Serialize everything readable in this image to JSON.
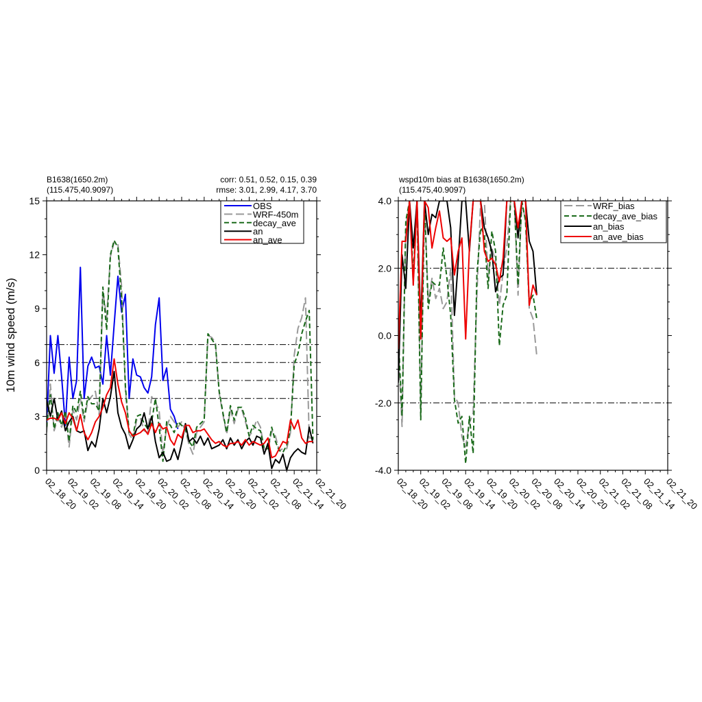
{
  "chart_data": [
    {
      "type": "line",
      "title_left": [
        "B1638(1650.2m)",
        "(115.475,40.9097)"
      ],
      "title_right": [
        "corr:  0.51, 0.52, 0.15, 0.39",
        "rmse: 3.01, 2.99, 4.17, 3.70"
      ],
      "xlabel": "",
      "ylabel": "10m wind speed (m/s)",
      "ylim": [
        0,
        15
      ],
      "yticks": [
        "0",
        "3",
        "6",
        "9",
        "12",
        "15"
      ],
      "xlim": [
        0,
        72
      ],
      "xticks": [
        "02_18_20",
        "02_19_02",
        "02_19_08",
        "02_19_14",
        "02_19_20",
        "02_20_02",
        "02_20_08",
        "02_20_14",
        "02_20_20",
        "02_21_02",
        "02_21_08",
        "02_21_14",
        "02_21_20"
      ],
      "x_step_hours": 1,
      "ref_lines": [
        4,
        5,
        6,
        7
      ],
      "legend_position": "top-right",
      "series": [
        {
          "name": "OBS",
          "color": "#0000ee",
          "dash": "solid",
          "values": [
            2.5,
            7.5,
            5.4,
            7.5,
            5.2,
            2.5,
            6.3,
            4.0,
            5.0,
            11.3,
            4.0,
            5.8,
            6.3,
            5.7,
            5.8,
            4.8,
            7.5,
            5.3,
            8.1,
            10.8,
            8.8,
            9.8,
            4.0,
            6.2,
            5.3,
            5.2,
            4.6,
            4.3,
            5.2,
            8.1,
            9.6,
            5.0,
            5.7,
            3.4,
            3.0,
            2.3
          ]
        },
        {
          "name": "WRF-450m",
          "color": "#999999",
          "dash": "long",
          "values": [
            2.1,
            4.8,
            2.2,
            2.9,
            2.4,
            3.1,
            1.3,
            3.4,
            2.8,
            4.0,
            2.7,
            3.9,
            4.1,
            4.4,
            3.1,
            10.0,
            8.5,
            11.9,
            12.7,
            12.6,
            10.2,
            4.5,
            2.0,
            1.7,
            2.8,
            2.9,
            2.2,
            2.1,
            4.1,
            3.8,
            3.3,
            0.9,
            2.4,
            3.0,
            2.7,
            2.4,
            2.7,
            2.2,
            1.4,
            0.9,
            2.1,
            2.4,
            2.7,
            7.5,
            7.4,
            7.1,
            4.3,
            3.1,
            2.0,
            3.4,
            2.6,
            3.4,
            3.4,
            2.7,
            1.9,
            2.2,
            2.8,
            2.4,
            1.2,
            1.1,
            2.2,
            1.9,
            1.1,
            1.2,
            1.2,
            2.1,
            6.4,
            7.9,
            8.5,
            9.6,
            1.8,
            1.8
          ]
        },
        {
          "name": "decay_ave",
          "color": "#1a6a1a",
          "dash": "dash",
          "values": [
            2.4,
            4.2,
            2.3,
            3.2,
            2.5,
            3.3,
            1.6,
            3.6,
            3.2,
            4.4,
            2.9,
            4.1,
            3.7,
            3.7,
            3.3,
            10.2,
            7.8,
            12.0,
            12.8,
            12.4,
            9.5,
            4.7,
            2.1,
            1.9,
            3.0,
            3.1,
            2.6,
            2.3,
            2.7,
            4.0,
            2.4,
            0.5,
            2.7,
            2.5,
            2.1,
            2.7,
            2.5,
            2.3,
            1.6,
            1.3,
            2.4,
            2.6,
            2.8,
            7.6,
            7.3,
            7.0,
            4.4,
            3.2,
            2.1,
            3.6,
            2.8,
            3.5,
            3.5,
            2.9,
            1.9,
            2.5,
            2.3,
            2.2,
            1.2,
            1.2,
            2.4,
            1.6,
            1.1,
            1.0,
            1.4,
            2.3,
            5.9,
            6.5,
            7.6,
            8.3,
            8.9,
            1.7
          ]
        },
        {
          "name": "an",
          "color": "#000000",
          "dash": "solid",
          "values": [
            3.9,
            3.0,
            4.0,
            2.8,
            3.3,
            2.2,
            2.7,
            3.0,
            2.2,
            2.1,
            2.2,
            1.1,
            1.6,
            1.3,
            2.3,
            4.0,
            3.2,
            4.1,
            5.5,
            3.2,
            2.4,
            2.0,
            1.2,
            1.7,
            2.3,
            2.5,
            3.2,
            2.3,
            3.0,
            1.6,
            0.7,
            1.0,
            0.5,
            0.6,
            1.2,
            0.6,
            1.5,
            2.6,
            1.6,
            1.8,
            1.5,
            1.9,
            1.4,
            1.8,
            1.2,
            1.3,
            1.4,
            1.7,
            1.2,
            1.8,
            1.4,
            1.7,
            1.2,
            1.6,
            1.8,
            1.4,
            1.9,
            1.8,
            0.9,
            1.5,
            0.1,
            0.6,
            0.4,
            0.9,
            0.0,
            0.7,
            1.0,
            1.2,
            1.0,
            0.9,
            2.4,
            1.5
          ]
        },
        {
          "name": "an_ave",
          "color": "#ee0000",
          "dash": "solid",
          "values": [
            2.8,
            2.9,
            2.9,
            2.8,
            3.2,
            2.6,
            3.2,
            2.9,
            2.2,
            3.1,
            2.1,
            1.7,
            2.1,
            2.7,
            3.0,
            3.5,
            4.2,
            4.6,
            6.2,
            4.8,
            3.8,
            3.2,
            2.2,
            1.9,
            2.0,
            2.1,
            2.3,
            2.0,
            2.6,
            2.1,
            2.6,
            2.3,
            2.4,
            1.7,
            1.4,
            2.0,
            1.8,
            2.5,
            2.5,
            2.1,
            2.2,
            2.2,
            2.3,
            2.0,
            1.7,
            1.5,
            1.6,
            1.4,
            1.3,
            1.5,
            1.5,
            1.6,
            1.4,
            1.7,
            1.4,
            1.6,
            1.5,
            1.4,
            1.5,
            1.8,
            0.7,
            0.8,
            1.2,
            1.6,
            1.5,
            2.8,
            2.3,
            2.8,
            1.8,
            1.5,
            1.6,
            1.6
          ]
        }
      ]
    },
    {
      "type": "line",
      "title_left": [
        "wspd10m bias at B1638(1650.2m)",
        "(115.475,40.9097)"
      ],
      "xlabel": "",
      "ylabel": "",
      "ylim": [
        -4,
        4
      ],
      "yticks": [
        "-4.0",
        "-2.0",
        "0.0",
        "2.0",
        "4.0"
      ],
      "xlim": [
        0,
        72
      ],
      "xticks": [
        "02_18_20",
        "02_19_02",
        "02_19_08",
        "02_19_14",
        "02_19_20",
        "02_20_02",
        "02_20_08",
        "02_20_14",
        "02_20_20",
        "02_21_02",
        "02_21_08",
        "02_21_14",
        "02_21_20"
      ],
      "x_step_hours": 1,
      "ref_lines": [
        -2,
        2
      ],
      "legend_position": "top-right",
      "series": [
        {
          "name": "WRF_bias",
          "color": "#999999",
          "dash": "long",
          "values": [
            -0.4,
            -2.7,
            3.2,
            4.0,
            1.5,
            4.0,
            -2.3,
            4.0,
            1.0,
            1.7,
            1.1,
            1.4,
            0.8,
            1.0,
            2.0,
            -1.8,
            -2.0,
            -3.0,
            -3.3,
            -2.6,
            -2.3,
            1.2,
            4.0,
            4.0,
            1.7,
            2.6,
            2.2,
            0.9,
            1.9,
            2.6,
            4.0,
            4.0,
            1.2,
            4.0,
            3.4,
            0.8,
            0.5,
            -0.6
          ]
        },
        {
          "name": "decay_ave_bias",
          "color": "#1a6a1a",
          "dash": "dash",
          "values": [
            0.0,
            -2.4,
            3.4,
            4.0,
            1.8,
            4.0,
            -2.5,
            4.0,
            0.8,
            1.6,
            1.5,
            1.5,
            2.6,
            1.7,
            0.6,
            -1.9,
            -2.6,
            -2.4,
            -3.8,
            -2.4,
            -3.5,
            1.8,
            3.2,
            3.0,
            1.4,
            3.1,
            2.5,
            -0.3,
            0.9,
            1.2,
            4.0,
            4.0,
            1.5,
            4.0,
            3.4,
            1.0,
            1.2,
            0.5
          ]
        },
        {
          "name": "an_bias",
          "color": "#000000",
          "dash": "solid",
          "values": [
            -1.4,
            2.4,
            1.4,
            4.0,
            2.6,
            4.0,
            0.3,
            4.0,
            3.0,
            3.6,
            3.5,
            4.0,
            4.0,
            4.0,
            3.2,
            0.6,
            2.2,
            4.0,
            4.0,
            2.5,
            4.0,
            4.0,
            4.0,
            3.2,
            2.9,
            2.5,
            1.3,
            1.7,
            1.8,
            4.0,
            4.0,
            4.0,
            2.9,
            4.0,
            4.0,
            2.8,
            2.5,
            1.2
          ]
        },
        {
          "name": "an_ave_bias",
          "color": "#ee0000",
          "dash": "solid",
          "values": [
            -0.4,
            2.8,
            2.8,
            4.0,
            1.5,
            4.0,
            -0.1,
            4.0,
            3.8,
            2.6,
            3.2,
            3.7,
            2.9,
            2.8,
            2.9,
            1.8,
            2.5,
            2.9,
            -0.1,
            2.6,
            4.0,
            4.0,
            4.0,
            2.5,
            2.2,
            2.3,
            2.1,
            1.6,
            2.3,
            4.0,
            4.0,
            4.0,
            3.2,
            4.0,
            4.0,
            0.9,
            1.5,
            1.2
          ]
        }
      ]
    }
  ]
}
